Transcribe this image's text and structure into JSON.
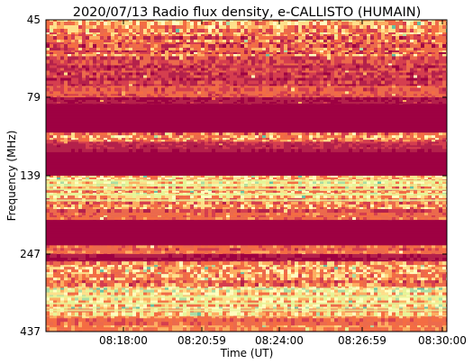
{
  "chart_data": {
    "type": "heatmap",
    "title": "2020/07/13  Radio flux density, e-CALLISTO (HUMAIN)",
    "xlabel": "Time (UT)",
    "ylabel": "Frequency (MHz)",
    "x_ticks": [
      "08:18:00",
      "08:20:59",
      "08:24:00",
      "08:26:59",
      "08:30:00"
    ],
    "y_ticks": [
      "45",
      "79",
      "139",
      "247",
      "437"
    ],
    "y_axis_inverted": true,
    "colormap": "Spectral",
    "palette": [
      "#9e0142",
      "#b4214b",
      "#d53e4f",
      "#ec6a4c",
      "#f46d43",
      "#fdae61",
      "#fee08b",
      "#ffffbf",
      "#e6f598",
      "#abdda4",
      "#66c2a5"
    ],
    "background_band": "#9e0142",
    "bands": [
      {
        "freq_from": 45,
        "freq_to": 61,
        "level": 0.4,
        "variation": "high"
      },
      {
        "freq_from": 61,
        "freq_to": 74,
        "level": 0.2,
        "variation": "medium"
      },
      {
        "freq_from": 74,
        "freq_to": 79,
        "level": 0.3,
        "variation": "medium"
      },
      {
        "freq_from": 79,
        "freq_to": 84,
        "level": 0.12,
        "variation": "low"
      },
      {
        "freq_from": 84,
        "freq_to": 106,
        "level": 0.0,
        "variation": "none"
      },
      {
        "freq_from": 106,
        "freq_to": 113,
        "level": 0.35,
        "variation": "high"
      },
      {
        "freq_from": 113,
        "freq_to": 121,
        "level": 0.15,
        "variation": "low"
      },
      {
        "freq_from": 121,
        "freq_to": 139,
        "level": 0.0,
        "variation": "none"
      },
      {
        "freq_from": 139,
        "freq_to": 160,
        "level": 0.55,
        "variation": "high"
      },
      {
        "freq_from": 160,
        "freq_to": 185,
        "level": 0.5,
        "variation": "high"
      },
      {
        "freq_from": 185,
        "freq_to": 200,
        "level": 0.3,
        "variation": "medium"
      },
      {
        "freq_from": 200,
        "freq_to": 235,
        "level": 0.02,
        "variation": "none"
      },
      {
        "freq_from": 235,
        "freq_to": 247,
        "level": 0.35,
        "variation": "medium"
      },
      {
        "freq_from": 247,
        "freq_to": 265,
        "level": 0.08,
        "variation": "low"
      },
      {
        "freq_from": 265,
        "freq_to": 330,
        "level": 0.45,
        "variation": "high"
      },
      {
        "freq_from": 330,
        "freq_to": 400,
        "level": 0.6,
        "variation": "high"
      },
      {
        "freq_from": 400,
        "freq_to": 437,
        "level": 0.4,
        "variation": "medium"
      }
    ],
    "bright_lines_mhz": [
      146,
      152,
      158,
      165,
      173,
      352,
      368,
      385
    ],
    "grid": false,
    "legend": "none"
  }
}
